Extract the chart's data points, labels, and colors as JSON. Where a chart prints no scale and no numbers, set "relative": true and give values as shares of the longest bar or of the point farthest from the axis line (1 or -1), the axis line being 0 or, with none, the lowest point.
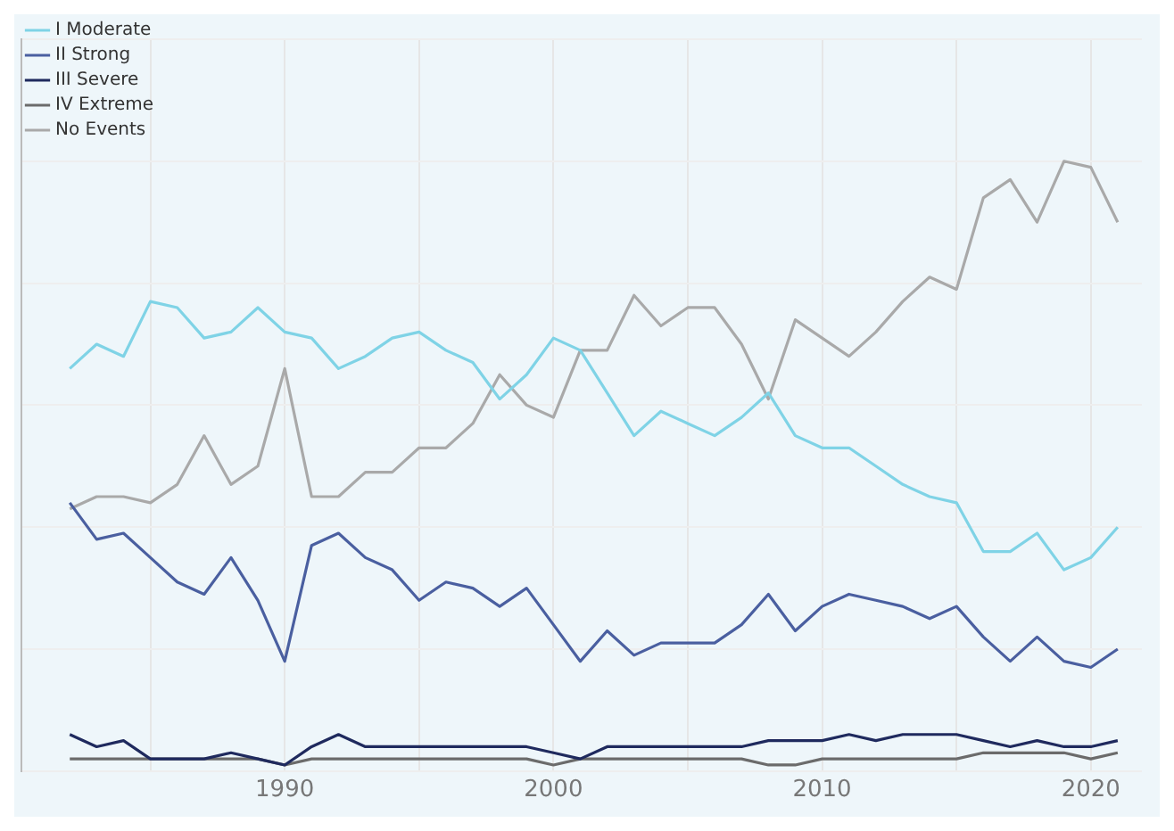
{
  "chart_data": {
    "type": "line",
    "relative": true,
    "x": [
      1982,
      1983,
      1984,
      1985,
      1986,
      1987,
      1988,
      1989,
      1990,
      1991,
      1992,
      1993,
      1994,
      1995,
      1996,
      1997,
      1998,
      1999,
      2000,
      2001,
      2002,
      2003,
      2004,
      2005,
      2006,
      2007,
      2008,
      2009,
      2010,
      2011,
      2012,
      2013,
      2014,
      2015,
      2016,
      2017,
      2018,
      2019,
      2020,
      2021
    ],
    "xlim": [
      1980.2,
      2021.9
    ],
    "xticks": [
      {
        "value": 1985,
        "label": null
      },
      1990,
      {
        "value": 1995,
        "label": null
      },
      2000,
      {
        "value": 2005,
        "label": null
      },
      2010,
      {
        "value": 2015,
        "label": null
      },
      2020
    ],
    "series": [
      {
        "name": "I Moderate",
        "color": "#7fd3e6",
        "values": [
          0.66,
          0.7,
          0.68,
          0.77,
          0.76,
          0.71,
          0.72,
          0.76,
          0.72,
          0.71,
          0.66,
          0.68,
          0.71,
          0.72,
          0.69,
          0.67,
          0.61,
          0.65,
          0.71,
          0.69,
          0.62,
          0.55,
          0.59,
          0.57,
          0.55,
          0.58,
          0.62,
          0.55,
          0.53,
          0.53,
          0.5,
          0.47,
          0.45,
          0.44,
          0.36,
          0.36,
          0.39,
          0.33,
          0.35,
          0.4
        ]
      },
      {
        "name": "II Strong",
        "color": "#4a5fa0",
        "values": [
          0.44,
          0.38,
          0.39,
          0.35,
          0.31,
          0.29,
          0.35,
          0.28,
          0.18,
          0.37,
          0.39,
          0.35,
          0.33,
          0.28,
          0.31,
          0.3,
          0.27,
          0.3,
          0.24,
          0.18,
          0.23,
          0.19,
          0.21,
          0.21,
          0.21,
          0.24,
          0.29,
          0.23,
          0.27,
          0.29,
          0.28,
          0.27,
          0.25,
          0.27,
          0.22,
          0.18,
          0.22,
          0.18,
          0.17,
          0.2
        ]
      },
      {
        "name": "III Severe",
        "color": "#1f2a5e",
        "values": [
          0.06,
          0.04,
          0.05,
          0.02,
          0.02,
          0.02,
          0.03,
          0.02,
          0.01,
          0.04,
          0.06,
          0.04,
          0.04,
          0.04,
          0.04,
          0.04,
          0.04,
          0.04,
          0.03,
          0.02,
          0.04,
          0.04,
          0.04,
          0.04,
          0.04,
          0.04,
          0.05,
          0.05,
          0.05,
          0.06,
          0.05,
          0.06,
          0.06,
          0.06,
          0.05,
          0.04,
          0.05,
          0.04,
          0.04,
          0.05
        ]
      },
      {
        "name": "IV Extreme",
        "color": "#6b6b6b",
        "values": [
          0.02,
          0.02,
          0.02,
          0.02,
          0.02,
          0.02,
          0.02,
          0.02,
          0.01,
          0.02,
          0.02,
          0.02,
          0.02,
          0.02,
          0.02,
          0.02,
          0.02,
          0.02,
          0.01,
          0.02,
          0.02,
          0.02,
          0.02,
          0.02,
          0.02,
          0.02,
          0.01,
          0.01,
          0.02,
          0.02,
          0.02,
          0.02,
          0.02,
          0.02,
          0.03,
          0.03,
          0.03,
          0.03,
          0.02,
          0.03
        ]
      },
      {
        "name": "No Events",
        "color": "#a9a9a9",
        "values": [
          0.43,
          0.45,
          0.45,
          0.44,
          0.47,
          0.55,
          0.47,
          0.5,
          0.66,
          0.45,
          0.45,
          0.49,
          0.49,
          0.53,
          0.53,
          0.57,
          0.65,
          0.6,
          0.58,
          0.69,
          0.69,
          0.78,
          0.73,
          0.76,
          0.76,
          0.7,
          0.61,
          0.74,
          0.71,
          0.68,
          0.72,
          0.77,
          0.81,
          0.79,
          0.94,
          0.97,
          0.9,
          1,
          0.99,
          0.9
        ]
      }
    ],
    "grid": true,
    "legend": "top left",
    "marker": "none",
    "line_style": "solid"
  }
}
